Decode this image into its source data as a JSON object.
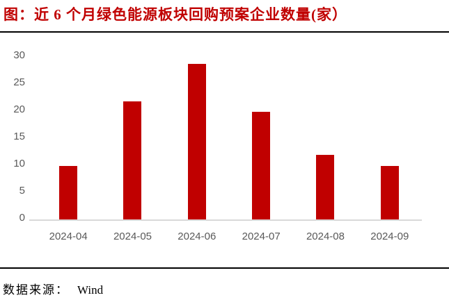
{
  "footer": {
    "source_label": "数据来源：",
    "source_value": "Wind"
  },
  "colors": {
    "title": "#c00000",
    "bar": "#c00000",
    "axis_line": "#d9d9d9",
    "tick_label": "#595959",
    "divider": "#000000"
  },
  "chart_data": {
    "type": "bar",
    "title": "图：近 6 个月绿色能源板块回购预案企业数量(家）",
    "categories": [
      "2024-04",
      "2024-05",
      "2024-06",
      "2024-07",
      "2024-08",
      "2024-09"
    ],
    "values": [
      10,
      22,
      29,
      20,
      12,
      10
    ],
    "xlabel": "",
    "ylabel": "",
    "ylim": [
      0,
      30
    ],
    "yticks": [
      0,
      5,
      10,
      15,
      20,
      25,
      30
    ],
    "grid": false,
    "legend": false,
    "bar_color": "#c00000"
  }
}
